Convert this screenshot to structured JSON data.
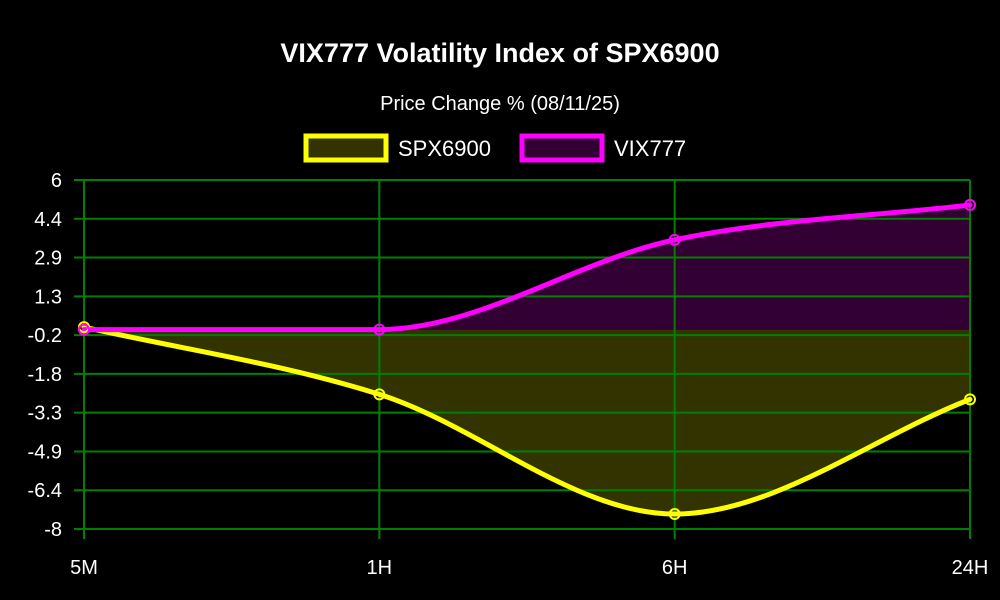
{
  "chart_data": {
    "type": "line",
    "title": "VIX777 Volatility Index of SPX6900",
    "subtitle": "Price Change % (08/11/25)",
    "categories": [
      "5M",
      "1H",
      "6H",
      "24H"
    ],
    "y_ticks": [
      "6",
      "4.4",
      "2.9",
      "1.3",
      "-0.2",
      "-1.8",
      "-3.3",
      "-4.9",
      "-6.4",
      "-8"
    ],
    "ylim": [
      -8,
      6
    ],
    "fill_baseline": 0,
    "grid": true,
    "legend_position": "top-center",
    "series": [
      {
        "name": "SPX6900",
        "values": [
          0.1,
          -2.6,
          -7.4,
          -2.8
        ],
        "color": "#ffff00",
        "fill_color": "#333300"
      },
      {
        "name": "VIX777",
        "values": [
          0.0,
          0.0,
          3.6,
          5.0
        ],
        "color": "#ff00ff",
        "fill_color": "#330033"
      }
    ],
    "grid_color": "#008000",
    "axis_text_color": "#ffffff"
  }
}
